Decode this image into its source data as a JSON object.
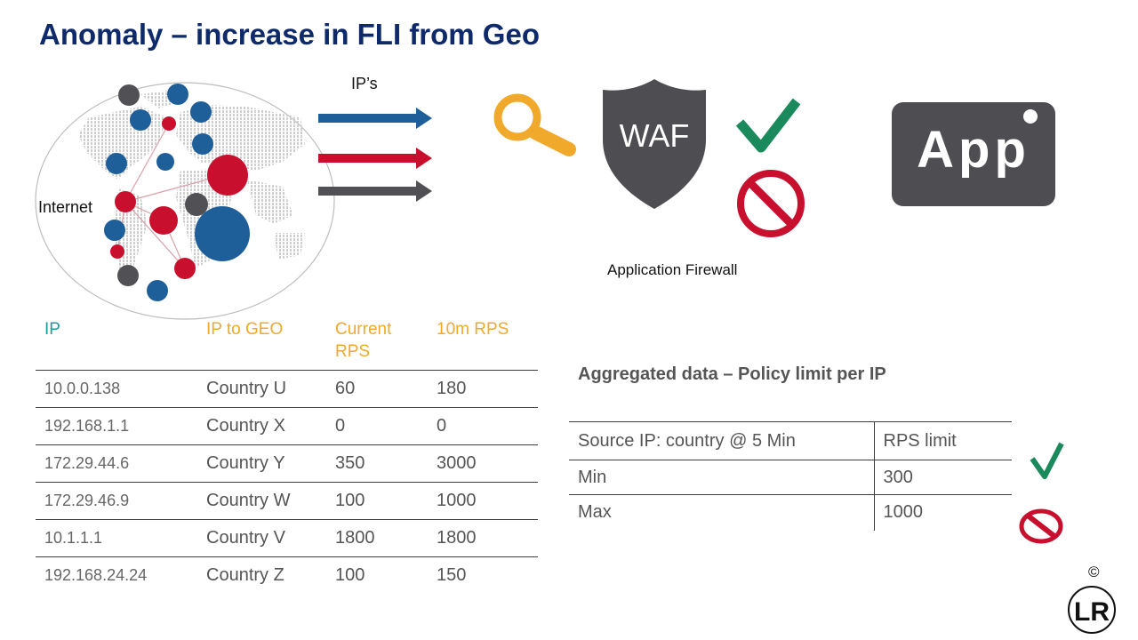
{
  "slide": {
    "title": "Anomaly – increase in FLI from Geo",
    "internet_label": "Internet",
    "ips_label": "IP’s",
    "waf_text": "WAF",
    "firewall_label": "Application Firewall",
    "app_text": "App",
    "copyright": "©",
    "logo_text": "LR"
  },
  "ip_table": {
    "headers": [
      "IP",
      "IP to GEO",
      "Current RPS",
      "10m RPS"
    ],
    "rows": [
      {
        "ip": "10.0.0.138",
        "geo": "Country U",
        "current": "60",
        "ten": "180"
      },
      {
        "ip": "192.168.1.1",
        "geo": "Country X",
        "current": "0",
        "ten": "0"
      },
      {
        "ip": "172.29.44.6",
        "geo": "Country Y",
        "current": "350",
        "ten": "3000"
      },
      {
        "ip": "172.29.46.9",
        "geo": "Country W",
        "current": "100",
        "ten": "1000"
      },
      {
        "ip": "10.1.1.1",
        "geo": "Country V",
        "current": "1800",
        "ten": "1800"
      },
      {
        "ip": "192.168.24.24",
        "geo": "Country Z",
        "current": "100",
        "ten": "150"
      }
    ]
  },
  "policy": {
    "title": "Aggregated data – Policy limit per IP",
    "headers": [
      "Source IP: country @ 5 Min",
      "RPS  limit"
    ],
    "rows": [
      {
        "label": "Min",
        "value": "300"
      },
      {
        "label": "Max",
        "value": "1000"
      }
    ]
  },
  "colors": {
    "title": "#0e2a6b",
    "blue": "#1f5f99",
    "red": "#c8102e",
    "dark": "#505055",
    "gold": "#f0a92a",
    "teal": "#1a9d9b",
    "green": "#1a8a5c"
  },
  "icons": [
    "globe-icon",
    "magnifier-icon",
    "shield-icon",
    "checkmark-icon",
    "prohibited-icon",
    "app-icon",
    "lr-logo-icon"
  ]
}
